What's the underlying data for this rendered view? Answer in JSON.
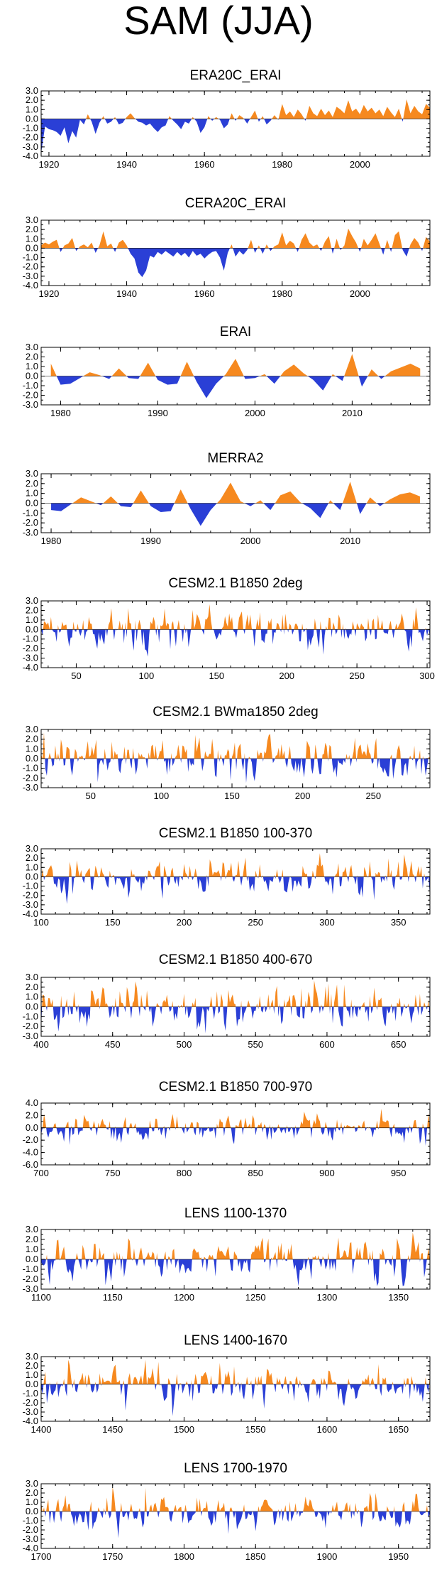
{
  "figure_title": "SAM (JJA)",
  "colors": {
    "positive": "#f6891f",
    "negative": "#2a3fd6",
    "axis": "#000000"
  },
  "chart_data": [
    {
      "type": "area",
      "title": "ERA20C_ERAI",
      "xlim": [
        1918,
        2018
      ],
      "ylim": [
        -4,
        3
      ],
      "yticks": [
        "3.0",
        "2.0",
        "1.0",
        "0.0",
        "-1.0",
        "-2.0",
        "-3.0",
        "-4.0"
      ],
      "xticks": [
        1920,
        1940,
        1960,
        1980,
        2000
      ],
      "x": [
        1918,
        1919,
        1920,
        1921,
        1922,
        1923,
        1924,
        1925,
        1926,
        1927,
        1928,
        1929,
        1930,
        1931,
        1932,
        1933,
        1934,
        1935,
        1936,
        1937,
        1938,
        1939,
        1940,
        1941,
        1942,
        1943,
        1944,
        1945,
        1946,
        1947,
        1948,
        1949,
        1950,
        1951,
        1952,
        1953,
        1954,
        1955,
        1956,
        1957,
        1958,
        1959,
        1960,
        1961,
        1962,
        1963,
        1964,
        1965,
        1966,
        1967,
        1968,
        1969,
        1970,
        1971,
        1972,
        1973,
        1974,
        1975,
        1976,
        1977,
        1978,
        1979,
        1980,
        1981,
        1982,
        1983,
        1984,
        1985,
        1986,
        1987,
        1988,
        1989,
        1990,
        1991,
        1992,
        1993,
        1994,
        1995,
        1996,
        1997,
        1998,
        1999,
        2000,
        2001,
        2002,
        2003,
        2004,
        2005,
        2006,
        2007,
        2008,
        2009,
        2010,
        2011,
        2012,
        2013,
        2014,
        2015,
        2016,
        2017,
        2018
      ],
      "values": [
        -3.9,
        -0.8,
        -1.1,
        -1.2,
        -1.4,
        -1.8,
        -0.9,
        -2.6,
        -1.3,
        -2.0,
        -0.1,
        -0.6,
        0.5,
        -0.3,
        -1.6,
        -0.4,
        0.3,
        -0.5,
        -0.3,
        0.2,
        -0.6,
        -0.4,
        0.2,
        0.6,
        0.1,
        -0.3,
        -0.4,
        -0.7,
        -0.5,
        -1.0,
        -1.4,
        -0.9,
        -0.7,
        0.3,
        -0.2,
        -0.6,
        -1.1,
        -0.3,
        -0.5,
        0.2,
        -0.3,
        -1.5,
        -0.9,
        0.3,
        -0.2,
        0.2,
        -0.1,
        -1.0,
        -0.6,
        0.6,
        -0.2,
        0.4,
        0.1,
        -0.5,
        0.2,
        0.9,
        -0.3,
        0.3,
        -0.6,
        -0.2,
        0.4,
        -0.1,
        1.6,
        0.4,
        0.8,
        0.2,
        1.0,
        0.5,
        -0.2,
        1.4,
        0.6,
        0.3,
        1.1,
        0.4,
        0.9,
        0.2,
        1.3,
        1.0,
        0.6,
        2.0,
        0.8,
        1.1,
        0.5,
        1.5,
        0.8,
        1.2,
        0.6,
        1.0,
        0.3,
        1.3,
        0.7,
        0.2,
        1.1,
        -0.3,
        2.1,
        0.6,
        1.4,
        0.8,
        0.5,
        1.6,
        1.2
      ]
    },
    {
      "type": "area",
      "title": "CERA20C_ERAI",
      "xlim": [
        1918,
        2018
      ],
      "ylim": [
        -4,
        3
      ],
      "yticks": [
        "3.0",
        "2.0",
        "1.0",
        "0.0",
        "-1.0",
        "-2.0",
        "-3.0",
        "-4.0"
      ],
      "xticks": [
        1920,
        1940,
        1960,
        1980,
        2000
      ],
      "x": [
        1918,
        1919,
        1920,
        1921,
        1922,
        1923,
        1924,
        1925,
        1926,
        1927,
        1928,
        1929,
        1930,
        1931,
        1932,
        1933,
        1934,
        1935,
        1936,
        1937,
        1938,
        1939,
        1940,
        1941,
        1942,
        1943,
        1944,
        1945,
        1946,
        1947,
        1948,
        1949,
        1950,
        1951,
        1952,
        1953,
        1954,
        1955,
        1956,
        1957,
        1958,
        1959,
        1960,
        1961,
        1962,
        1963,
        1964,
        1965,
        1966,
        1967,
        1968,
        1969,
        1970,
        1971,
        1972,
        1973,
        1974,
        1975,
        1976,
        1977,
        1978,
        1979,
        1980,
        1981,
        1982,
        1983,
        1984,
        1985,
        1986,
        1987,
        1988,
        1989,
        1990,
        1991,
        1992,
        1993,
        1994,
        1995,
        1996,
        1997,
        1998,
        1999,
        2000,
        2001,
        2002,
        2003,
        2004,
        2005,
        2006,
        2007,
        2008,
        2009,
        2010,
        2011,
        2012,
        2013,
        2014,
        2015,
        2016,
        2017,
        2018
      ],
      "values": [
        0.3,
        0.6,
        0.4,
        0.7,
        0.9,
        -0.4,
        0.3,
        0.5,
        1.1,
        -0.3,
        0.2,
        0.4,
        0.1,
        0.6,
        -0.5,
        0.3,
        1.8,
        0.2,
        0.5,
        -0.4,
        0.6,
        0.9,
        0.3,
        -0.6,
        -1.1,
        -2.6,
        -3.1,
        -2.4,
        -0.8,
        -1.0,
        -0.4,
        -0.7,
        -0.3,
        -0.6,
        -0.9,
        -0.4,
        -0.8,
        -0.5,
        -1.0,
        -0.3,
        -0.8,
        -0.6,
        -1.1,
        -0.7,
        -0.4,
        -0.3,
        -1.0,
        -2.4,
        -0.5,
        0.4,
        -0.9,
        -0.3,
        -0.7,
        -0.2,
        0.9,
        -0.5,
        0.3,
        -0.6,
        0.4,
        -0.3,
        0.2,
        0.4,
        1.7,
        0.3,
        0.8,
        0.5,
        -0.4,
        0.9,
        1.6,
        0.6,
        0.2,
        0.4,
        -0.3,
        0.7,
        1.3,
        -0.6,
        1.0,
        -0.2,
        0.3,
        2.1,
        1.3,
        0.6,
        -0.4,
        1.0,
        0.3,
        0.9,
        1.6,
        0.5,
        -0.7,
        0.9,
        -0.4,
        1.4,
        1.8,
        -0.2,
        -0.9,
        0.4,
        1.1,
        0.6,
        -0.3,
        1.2,
        0.7
      ]
    },
    {
      "type": "area",
      "title": "ERAI",
      "xlim": [
        1978,
        2018
      ],
      "ylim": [
        -3,
        3
      ],
      "yticks": [
        "3.0",
        "2.0",
        "1.0",
        "0.0",
        "-1.0",
        "-2.0",
        "-3.0"
      ],
      "xticks": [
        1980,
        1990,
        2000,
        2010
      ],
      "x": [
        1979,
        1980,
        1981,
        1982,
        1983,
        1984,
        1985,
        1986,
        1987,
        1988,
        1989,
        1990,
        1991,
        1992,
        1993,
        1994,
        1995,
        1996,
        1997,
        1998,
        1999,
        2000,
        2001,
        2002,
        2003,
        2004,
        2005,
        2006,
        2007,
        2008,
        2009,
        2010,
        2011,
        2012,
        2013,
        2014,
        2015,
        2016,
        2017
      ],
      "values": [
        1.3,
        -0.9,
        -0.8,
        -0.2,
        0.4,
        0.1,
        -0.3,
        0.8,
        -0.2,
        -0.3,
        1.4,
        -0.4,
        -0.9,
        -0.8,
        1.5,
        -0.6,
        -2.3,
        -0.8,
        0.2,
        1.8,
        -0.3,
        -0.2,
        0.2,
        -0.8,
        0.5,
        1.2,
        0.3,
        -0.4,
        -1.5,
        0.2,
        -0.5,
        2.3,
        -1.1,
        0.7,
        -0.3,
        0.5,
        0.9,
        1.3,
        0.8
      ]
    },
    {
      "type": "area",
      "title": "MERRA2",
      "xlim": [
        1979,
        2018
      ],
      "ylim": [
        -3,
        3
      ],
      "yticks": [
        "3.0",
        "2.0",
        "1.0",
        "0.0",
        "-1.0",
        "-2.0",
        "-3.0"
      ],
      "xticks": [
        1980,
        1990,
        2000,
        2010
      ],
      "x": [
        1980,
        1981,
        1982,
        1983,
        1984,
        1985,
        1986,
        1987,
        1988,
        1989,
        1990,
        1991,
        1992,
        1993,
        1994,
        1995,
        1996,
        1997,
        1998,
        1999,
        2000,
        2001,
        2002,
        2003,
        2004,
        2005,
        2006,
        2007,
        2008,
        2009,
        2010,
        2011,
        2012,
        2013,
        2014,
        2015,
        2016,
        2017
      ],
      "values": [
        -0.7,
        -0.8,
        -0.1,
        0.6,
        0.2,
        -0.2,
        0.7,
        -0.3,
        -0.4,
        1.3,
        -0.3,
        -0.9,
        -0.8,
        1.4,
        -0.6,
        -2.3,
        -0.7,
        0.4,
        2.1,
        0.2,
        -0.3,
        0.3,
        -0.7,
        0.8,
        1.2,
        0.1,
        -0.5,
        -1.5,
        0.3,
        -0.7,
        2.2,
        -1.1,
        0.6,
        -0.3,
        0.4,
        0.9,
        1.1,
        0.7
      ]
    },
    {
      "type": "area",
      "title": "CESM2.1 B1850 2deg",
      "xlim": [
        25,
        302
      ],
      "ylim": [
        -4,
        3
      ],
      "yticks": [
        "3.0",
        "2.0",
        "1.0",
        "0.0",
        "-1.0",
        "-2.0",
        "-3.0",
        "-4.0"
      ],
      "xticks": [
        50,
        100,
        150,
        200,
        250,
        300
      ],
      "generated": {
        "start": 25,
        "end": 302,
        "step": 1,
        "seed": 4101,
        "amplitude": 0.95,
        "persistence": 0.25
      }
    },
    {
      "type": "area",
      "title": "CESM2.1 BWma1850 2deg",
      "xlim": [
        15,
        290
      ],
      "ylim": [
        -3,
        3
      ],
      "yticks": [
        "3.0",
        "2.0",
        "1.0",
        "0.0",
        "-1.0",
        "-2.0",
        "-3.0"
      ],
      "xticks": [
        50,
        100,
        150,
        200,
        250
      ],
      "generated": {
        "start": 15,
        "end": 290,
        "step": 1,
        "seed": 5203,
        "amplitude": 1.0,
        "persistence": 0.3
      }
    },
    {
      "type": "area",
      "title": "CESM2.1 B1850 100-370",
      "xlim": [
        100,
        372
      ],
      "ylim": [
        -4,
        3
      ],
      "yticks": [
        "3.0",
        "2.0",
        "1.0",
        "0.0",
        "-1.0",
        "-2.0",
        "-3.0",
        "-4.0"
      ],
      "xticks": [
        100,
        150,
        200,
        250,
        300,
        350
      ],
      "generated": {
        "start": 100,
        "end": 372,
        "step": 1,
        "seed": 6307,
        "amplitude": 0.95,
        "persistence": 0.25
      }
    },
    {
      "type": "area",
      "title": "CESM2.1 B1850 400-670",
      "xlim": [
        400,
        672
      ],
      "ylim": [
        -3,
        3
      ],
      "yticks": [
        "3.0",
        "2.0",
        "1.0",
        "0.0",
        "-1.0",
        "-2.0",
        "-3.0"
      ],
      "xticks": [
        400,
        450,
        500,
        550,
        600,
        650
      ],
      "generated": {
        "start": 400,
        "end": 672,
        "step": 1,
        "seed": 7411,
        "amplitude": 0.95,
        "persistence": 0.25
      }
    },
    {
      "type": "area",
      "title": "CESM2.1 B1850 700-970",
      "xlim": [
        700,
        972
      ],
      "ylim": [
        -6,
        4
      ],
      "yticks": [
        "4.0",
        "2.0",
        "0.0",
        "-2.0",
        "-4.0",
        "-6.0"
      ],
      "xticks": [
        700,
        750,
        800,
        850,
        900,
        950
      ],
      "generated": {
        "start": 700,
        "end": 972,
        "step": 1,
        "seed": 8513,
        "amplitude": 1.0,
        "persistence": 0.25
      }
    },
    {
      "type": "area",
      "title": "LENS 1100-1370",
      "xlim": [
        1100,
        1372
      ],
      "ylim": [
        -3,
        3
      ],
      "yticks": [
        "3.0",
        "2.0",
        "1.0",
        "0.0",
        "-1.0",
        "-2.0",
        "-3.0"
      ],
      "xticks": [
        1100,
        1150,
        1200,
        1250,
        1300,
        1350
      ],
      "generated": {
        "start": 1100,
        "end": 1372,
        "step": 1,
        "seed": 9617,
        "amplitude": 1.0,
        "persistence": 0.3
      }
    },
    {
      "type": "area",
      "title": "LENS 1400-1670",
      "xlim": [
        1400,
        1672
      ],
      "ylim": [
        -4,
        3
      ],
      "yticks": [
        "3.0",
        "2.0",
        "1.0",
        "0.0",
        "-1.0",
        "-2.0",
        "-3.0",
        "-4.0"
      ],
      "xticks": [
        1400,
        1450,
        1500,
        1550,
        1600,
        1650
      ],
      "generated": {
        "start": 1400,
        "end": 1672,
        "step": 1,
        "seed": 1723,
        "amplitude": 0.95,
        "persistence": 0.25
      }
    },
    {
      "type": "area",
      "title": "LENS 1700-1970",
      "xlim": [
        1700,
        1972
      ],
      "ylim": [
        -4,
        3
      ],
      "yticks": [
        "3.0",
        "2.0",
        "1.0",
        "0.0",
        "-1.0",
        "-2.0",
        "-3.0",
        "-4.0"
      ],
      "xticks": [
        1700,
        1750,
        1800,
        1850,
        1900,
        1950
      ],
      "generated": {
        "start": 1700,
        "end": 1972,
        "step": 1,
        "seed": 2829,
        "amplitude": 0.95,
        "persistence": 0.25
      }
    }
  ]
}
